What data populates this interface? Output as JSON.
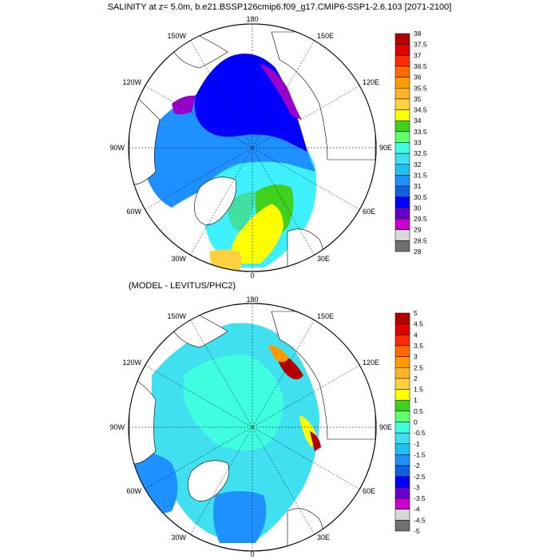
{
  "title": "SALINITY at z=   5.0m, b.e21.BSSP126cmip6.f09_g17.CMIP6-SSP1-2.6.103 [2071-2100]",
  "panel2_title": "(MODEL - LEVITUS/PHC2)",
  "lon_labels": {
    "top": "180",
    "upper_left": "150W",
    "upper_right": "150E",
    "left_upper": "120W",
    "right_upper": "120E",
    "left": "90W",
    "right": "90E",
    "left_lower": "60W",
    "right_lower": "60E",
    "lower_left": "30W",
    "lower_right": "30E",
    "bottom": "0"
  },
  "colorbar1": {
    "labels": [
      "38",
      "37.5",
      "37",
      "36.5",
      "36",
      "35.5",
      "35",
      "34.5",
      "34",
      "33.5",
      "33",
      "32.5",
      "32",
      "31.5",
      "31",
      "30.5",
      "30",
      "29.5",
      "29",
      "28.5",
      "28"
    ],
    "colors": [
      "#b40000",
      "#e00000",
      "#ff2a00",
      "#ff6a00",
      "#ff9a00",
      "#ffb428",
      "#ffd040",
      "#ffff00",
      "#40d020",
      "#60ff70",
      "#40ffe0",
      "#40e0f0",
      "#20c0f0",
      "#1e90ff",
      "#1060e0",
      "#0000ff",
      "#6600cc",
      "#cc00cc",
      "#d8d8d8",
      "#707070"
    ]
  },
  "colorbar2": {
    "labels": [
      "5",
      "4.5",
      "4",
      "3.5",
      "3",
      "2.5",
      "2",
      "1.5",
      "1",
      "0.5",
      "0",
      "-0.5",
      "-1",
      "-1.5",
      "-2",
      "-2.5",
      "-3",
      "-3.5",
      "-4",
      "-4.5",
      "-5"
    ],
    "colors": [
      "#b40000",
      "#e00000",
      "#ff2a00",
      "#ff6a00",
      "#ff9a00",
      "#ffb428",
      "#ffd040",
      "#ffff00",
      "#40d020",
      "#60ff70",
      "#40ffe0",
      "#40e0f0",
      "#20c0f0",
      "#1e90ff",
      "#1060e0",
      "#0000ff",
      "#6600cc",
      "#cc00cc",
      "#d8d8d8",
      "#707070"
    ]
  }
}
